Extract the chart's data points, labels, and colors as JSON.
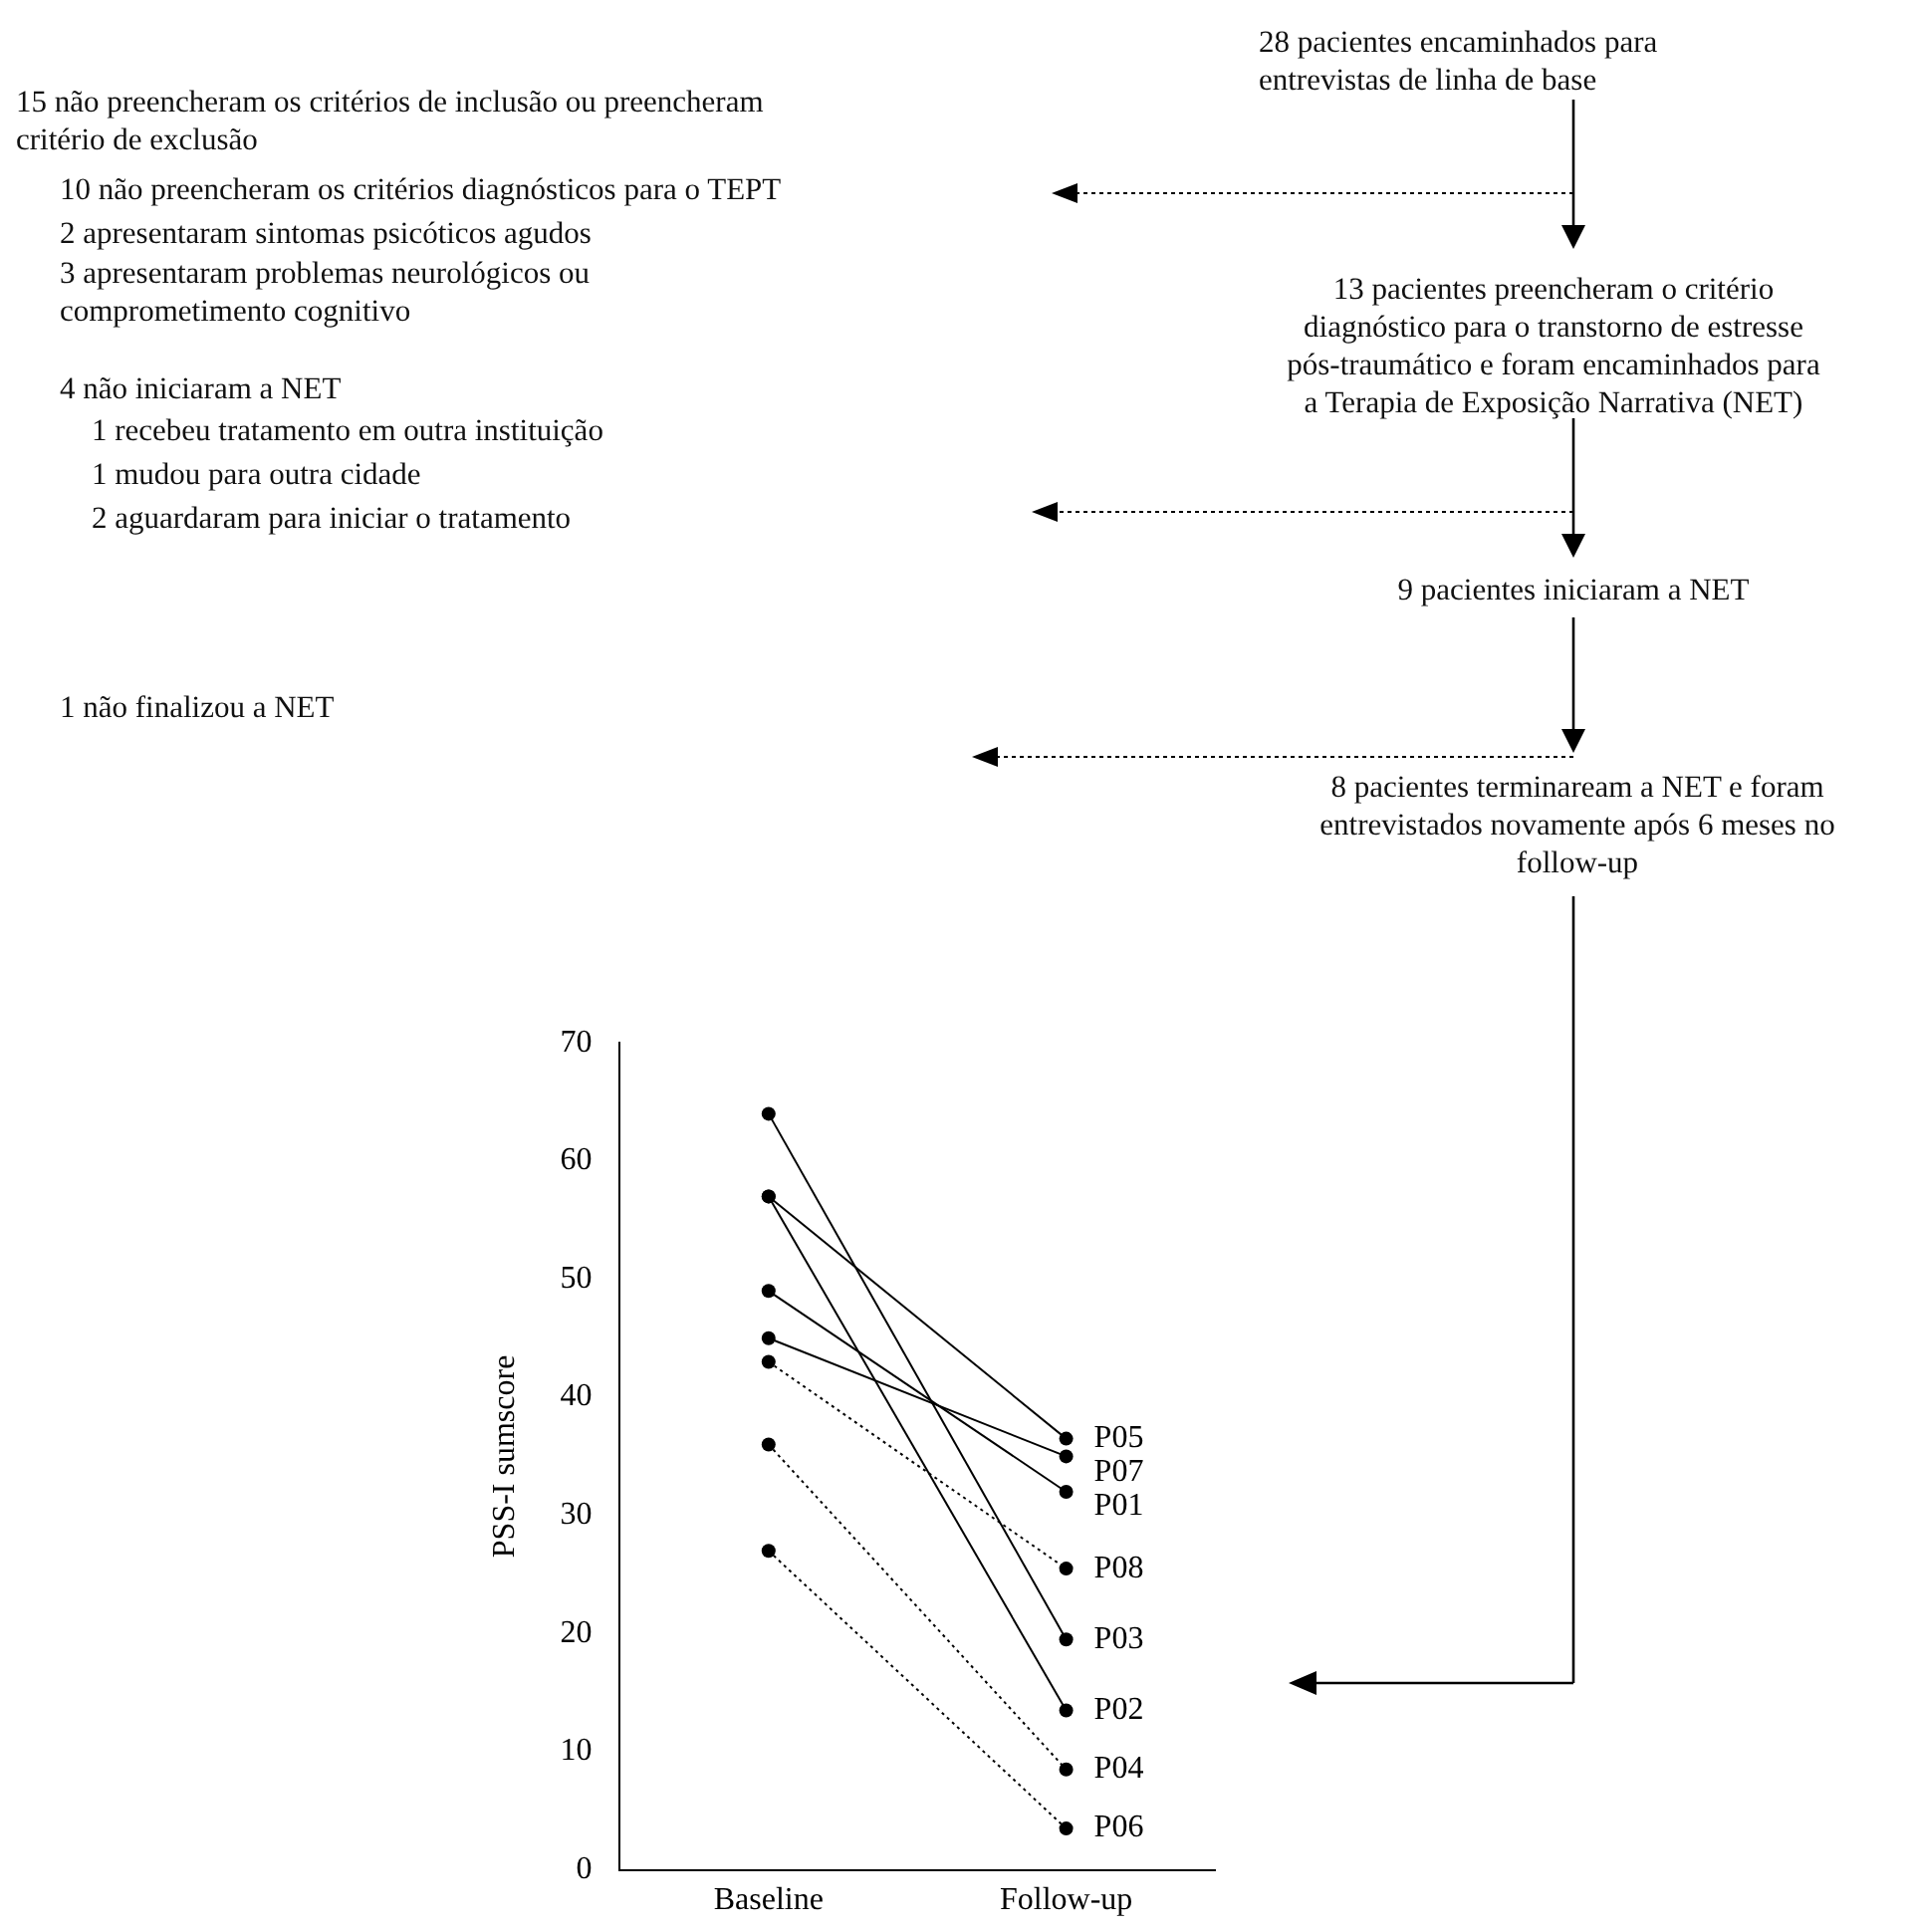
{
  "chart_data": {
    "type": "line",
    "ylabel": "PSS-I sumscore",
    "categories": [
      "Baseline",
      "Follow-up"
    ],
    "ylim": [
      0,
      70
    ],
    "yticks": [
      0,
      10,
      20,
      30,
      40,
      50,
      60,
      70
    ],
    "grid": false,
    "legend": false,
    "marker": "circle",
    "series": [
      {
        "name": "P05",
        "color": "#000000",
        "values": [
          57,
          36.5
        ],
        "line_style": "solid"
      },
      {
        "name": "P07",
        "color": "#000000",
        "values": [
          45,
          35
        ],
        "line_style": "solid"
      },
      {
        "name": "P01",
        "color": "#000000",
        "values": [
          49,
          32
        ],
        "line_style": "solid"
      },
      {
        "name": "P08",
        "color": "#000000",
        "values": [
          43,
          25.5
        ],
        "line_style": "dotted"
      },
      {
        "name": "P03",
        "color": "#000000",
        "values": [
          64,
          19.5
        ],
        "line_style": "solid"
      },
      {
        "name": "P02",
        "color": "#000000",
        "values": [
          57,
          13.5
        ],
        "line_style": "solid"
      },
      {
        "name": "P04",
        "color": "#000000",
        "values": [
          36,
          8.5
        ],
        "line_style": "dotted"
      },
      {
        "name": "P06",
        "color": "#000000",
        "values": [
          27,
          3.5
        ],
        "line_style": "dotted"
      }
    ],
    "annotations": [
      "28 pacientes encaminhados para\nentrevistas de linha de base",
      "15 não preencheram os critérios de inclusão ou preencheram\ncritério de exclusão",
      "10 não preencheram os critérios diagnósticos para o TEPT",
      "2 apresentaram sintomas psicóticos agudos",
      "3 apresentaram problemas neurológicos ou\ncomprometimento cognitivo",
      "13 pacientes preencheram o critério\ndiagnóstico para o transtorno de estresse\npós-traumático e foram encaminhados para\na Terapia de Exposição Narrativa (NET)",
      "4 não iniciaram a NET",
      "1 recebeu tratamento em outra instituição",
      "1 mudou para outra cidade",
      "2 aguardaram para iniciar o tratamento",
      "9 pacientes iniciaram a NET",
      "1 não finalizou a NET",
      "8 pacientes terminaream a NET e foram\nentrevistados novamente após 6 meses no\nfollow-up"
    ]
  }
}
